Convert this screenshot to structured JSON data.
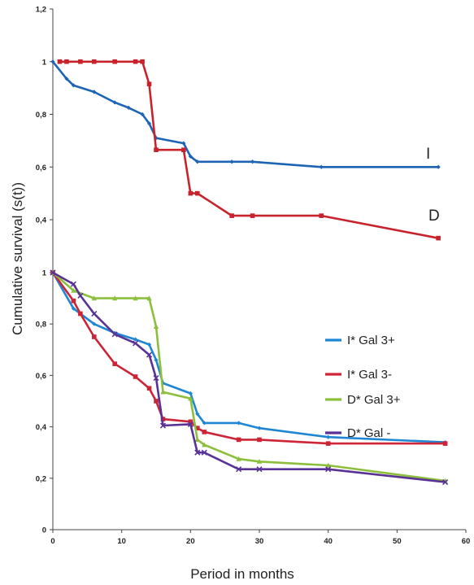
{
  "chart_data": [
    {
      "type": "line",
      "panel": "top",
      "y_ticks": [
        "0,4",
        "0,6",
        "0,8",
        "1",
        "1,2"
      ],
      "ylim": [
        0.4,
        1.2
      ],
      "series": [
        {
          "name": "I",
          "color": "#1e64b4",
          "marker": "diamond",
          "x": [
            0,
            2,
            3,
            6,
            9,
            11,
            13,
            14,
            15,
            19,
            20,
            21,
            26,
            29,
            39,
            56
          ],
          "y": [
            1.0,
            0.935,
            0.91,
            0.885,
            0.845,
            0.825,
            0.8,
            0.765,
            0.71,
            0.69,
            0.64,
            0.62,
            0.62,
            0.62,
            0.6,
            0.6
          ]
        },
        {
          "name": "D",
          "color": "#c8232d",
          "marker": "square",
          "x": [
            1,
            2,
            4,
            6,
            9,
            12,
            13,
            14,
            15,
            19,
            20,
            21,
            26,
            29,
            39,
            56
          ],
          "y": [
            1.0,
            1.0,
            1.0,
            1.0,
            1.0,
            1.0,
            1.0,
            0.915,
            0.665,
            0.665,
            0.5,
            0.5,
            0.415,
            0.415,
            0.415,
            0.33
          ]
        }
      ]
    },
    {
      "type": "line",
      "panel": "bottom",
      "x_ticks": [
        "0",
        "10",
        "20",
        "30",
        "40",
        "50",
        "60"
      ],
      "xlim": [
        0,
        60
      ],
      "y_ticks": [
        "0",
        "0,2",
        "0,4",
        "0,6",
        "0,8",
        "1"
      ],
      "ylim": [
        0,
        1.0
      ],
      "series": [
        {
          "name": "I* Gal 3+",
          "color": "#1e86d2",
          "marker": "diamond",
          "x": [
            0,
            3,
            4,
            6,
            9,
            12,
            14,
            15,
            16,
            20,
            21,
            22,
            27,
            30,
            40,
            57
          ],
          "y": [
            1.0,
            0.86,
            0.84,
            0.8,
            0.765,
            0.74,
            0.72,
            0.66,
            0.57,
            0.53,
            0.45,
            0.415,
            0.415,
            0.395,
            0.36,
            0.34
          ]
        },
        {
          "name": "I* Gal 3-",
          "color": "#cd2537",
          "marker": "square",
          "x": [
            0,
            3,
            4,
            6,
            9,
            12,
            14,
            15,
            16,
            20,
            21,
            22,
            27,
            30,
            40,
            57
          ],
          "y": [
            1.0,
            0.89,
            0.84,
            0.75,
            0.645,
            0.595,
            0.55,
            0.5,
            0.43,
            0.42,
            0.395,
            0.38,
            0.35,
            0.35,
            0.335,
            0.335
          ]
        },
        {
          "name": "D* Gal 3+",
          "color": "#8cc03c",
          "marker": "triangle",
          "x": [
            0,
            3,
            6,
            9,
            12,
            14,
            15,
            16,
            20,
            21,
            22,
            27,
            30,
            40,
            57
          ],
          "y": [
            1.0,
            0.93,
            0.9,
            0.9,
            0.9,
            0.9,
            0.79,
            0.535,
            0.51,
            0.35,
            0.33,
            0.275,
            0.265,
            0.25,
            0.19
          ]
        },
        {
          "name": "D* Gal -",
          "color": "#5a3296",
          "marker": "x",
          "x": [
            0,
            3,
            4,
            6,
            9,
            12,
            14,
            15,
            16,
            20,
            21,
            22,
            27,
            30,
            40,
            57
          ],
          "y": [
            1.0,
            0.955,
            0.91,
            0.84,
            0.76,
            0.725,
            0.68,
            0.59,
            0.405,
            0.41,
            0.3,
            0.3,
            0.235,
            0.235,
            0.235,
            0.185
          ]
        }
      ]
    }
  ],
  "ylabel": "Cumulative survival (s(t))",
  "xlabel": "Period in months",
  "legend_placement": "right, bottom panel"
}
